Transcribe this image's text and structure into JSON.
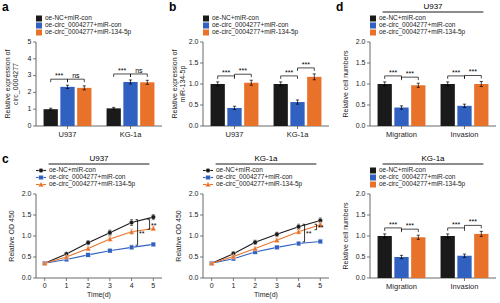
{
  "chart_data": [
    {
      "type": "bar",
      "panel_label": "a",
      "y_label": "Relative expression of\ncirc_0004277",
      "categories": [
        "U937",
        "KG-1a"
      ],
      "series": [
        {
          "name": "oe-NC+miR-con",
          "color": "#1a1a1a",
          "values": [
            1.0,
            1.05
          ],
          "errors": [
            0.06,
            0.06
          ]
        },
        {
          "name": "oe-circ_0004277+miR-con",
          "color": "#3060c0",
          "values": [
            2.33,
            2.62
          ],
          "errors": [
            0.1,
            0.12
          ]
        },
        {
          "name": "oe-circ_0004277+miR-134-5p",
          "color": "#e8722a",
          "values": [
            2.27,
            2.6
          ],
          "errors": [
            0.12,
            0.12
          ]
        }
      ],
      "ylim": [
        0,
        5
      ],
      "yticks": [
        0,
        1,
        2,
        3,
        4,
        5
      ],
      "annotations": [
        [
          "***",
          "ns"
        ],
        [
          "***",
          "ns"
        ]
      ],
      "legend": "top"
    },
    {
      "type": "bar",
      "panel_label": "b",
      "y_label": "Relative expression of\nmiR-134-5p",
      "categories": [
        "U937",
        "KG-1a"
      ],
      "series": [
        {
          "name": "oe-NC+miR-con",
          "color": "#1a1a1a",
          "values": [
            1.0,
            1.0
          ],
          "errors": [
            0.05,
            0.05
          ]
        },
        {
          "name": "oe-circ_0004277+miR-con",
          "color": "#3060c0",
          "values": [
            0.43,
            0.57
          ],
          "errors": [
            0.04,
            0.05
          ]
        },
        {
          "name": "oe-circ_0004277+miR-134-5p",
          "color": "#e8722a",
          "values": [
            1.03,
            1.17
          ],
          "errors": [
            0.06,
            0.07
          ]
        }
      ],
      "ylim": [
        0,
        2.0
      ],
      "yticks": [
        {
          "value": 0,
          "label": "0.0"
        },
        0.5,
        {
          "value": 1,
          "label": "1.0"
        },
        1.5,
        {
          "value": 2,
          "label": "2.0"
        }
      ],
      "annotations": [
        [
          "***",
          "***"
        ],
        [
          "***",
          "***"
        ]
      ],
      "legend": "top"
    },
    {
      "type": "bar",
      "panel_label": "d",
      "title": "U937",
      "y_label": "Relative cell numbers",
      "categories": [
        "Migration",
        "Invasion"
      ],
      "series": [
        {
          "name": "oe-NC+miR-con",
          "color": "#1a1a1a",
          "values": [
            1.0,
            1.0
          ],
          "errors": [
            0.05,
            0.05
          ]
        },
        {
          "name": "oe-circ_0004277+miR-con",
          "color": "#3060c0",
          "values": [
            0.44,
            0.48
          ],
          "errors": [
            0.04,
            0.04
          ]
        },
        {
          "name": "oe-circ_0004277+miR-134-5p",
          "color": "#e8722a",
          "values": [
            0.97,
            1.0
          ],
          "errors": [
            0.05,
            0.06
          ]
        }
      ],
      "ylim": [
        0,
        2.0
      ],
      "yticks": [
        {
          "value": 0,
          "label": "0.0"
        },
        0.5,
        {
          "value": 1,
          "label": "1.0"
        },
        1.5,
        {
          "value": 2,
          "label": "2.0"
        }
      ],
      "annotations": [
        [
          "***",
          "***"
        ],
        [
          "***",
          "***"
        ]
      ],
      "legend": "top"
    },
    {
      "type": "line",
      "panel_label": "c",
      "title": "U937",
      "x_label": "Time(d)",
      "y_label": "Relative OD 450",
      "x": [
        0,
        1,
        2,
        3,
        4,
        5
      ],
      "series": [
        {
          "name": "oe-NC+miR-con",
          "color": "#1a1a1a",
          "marker": "circle",
          "values": [
            0.35,
            0.57,
            0.84,
            1.08,
            1.32,
            1.45
          ],
          "errors": [
            0.02,
            0.04,
            0.05,
            0.06,
            0.07,
            0.06
          ]
        },
        {
          "name": "oe-circ_0004277+miR-con",
          "color": "#3060c0",
          "marker": "square",
          "values": [
            0.35,
            0.44,
            0.55,
            0.65,
            0.73,
            0.8
          ],
          "errors": [
            0.02,
            0.02,
            0.03,
            0.04,
            0.05,
            0.04
          ]
        },
        {
          "name": "oe-circ_0004277+miR-134-5p",
          "color": "#e8722a",
          "marker": "triangle",
          "values": [
            0.35,
            0.5,
            0.7,
            0.93,
            1.1,
            1.18
          ],
          "errors": [
            0.02,
            0.03,
            0.04,
            0.05,
            0.06,
            0.05
          ]
        }
      ],
      "xlim": [
        -0.4,
        5.4
      ],
      "xticks": [
        0,
        1,
        2,
        3,
        4,
        5
      ],
      "ylim": [
        0,
        2.0
      ],
      "yticks": [
        {
          "value": 0,
          "label": "0.0"
        },
        0.5,
        {
          "value": 1,
          "label": "1.0"
        },
        1.5,
        {
          "value": 2,
          "label": "2.0"
        }
      ],
      "annotations": [
        {
          "x": 4,
          "text": "**"
        },
        {
          "x": 4,
          "text": "**"
        }
      ],
      "legend": "top"
    },
    {
      "type": "line",
      "title": "KG-1a",
      "x_label": "Time(d)",
      "y_label": "Relative OD 450",
      "x": [
        0,
        1,
        2,
        3,
        4,
        5
      ],
      "series": [
        {
          "name": "oe-NC+miR-con",
          "color": "#1a1a1a",
          "marker": "circle",
          "values": [
            0.35,
            0.58,
            0.85,
            1.04,
            1.22,
            1.37
          ],
          "errors": [
            0.02,
            0.04,
            0.05,
            0.05,
            0.06,
            0.06
          ]
        },
        {
          "name": "oe-circ_0004277+miR-con",
          "color": "#3060c0",
          "marker": "square",
          "values": [
            0.35,
            0.46,
            0.62,
            0.73,
            0.82,
            0.87
          ],
          "errors": [
            0.02,
            0.02,
            0.03,
            0.04,
            0.04,
            0.05
          ]
        },
        {
          "name": "oe-circ_0004277+miR-134-5p",
          "color": "#e8722a",
          "marker": "triangle",
          "values": [
            0.35,
            0.51,
            0.7,
            0.9,
            1.1,
            1.27
          ],
          "errors": [
            0.02,
            0.03,
            0.04,
            0.05,
            0.05,
            0.06
          ]
        }
      ],
      "xlim": [
        -0.4,
        5.4
      ],
      "xticks": [
        0,
        1,
        2,
        3,
        4,
        5
      ],
      "ylim": [
        0,
        2.0
      ],
      "yticks": [
        {
          "value": 0,
          "label": "0.0"
        },
        0.5,
        {
          "value": 1,
          "label": "1.0"
        },
        1.5,
        {
          "value": 2,
          "label": "2.0"
        }
      ],
      "annotations": [
        {
          "x": 4,
          "text": "**"
        },
        {
          "x": 4,
          "text": "**"
        }
      ],
      "legend": "top"
    },
    {
      "type": "bar",
      "title": "KG-1a",
      "y_label": "Relative cell numbers",
      "categories": [
        "Migration",
        "Invasion"
      ],
      "series": [
        {
          "name": "oe-NC+miR-con",
          "color": "#1a1a1a",
          "values": [
            1.0,
            1.0
          ],
          "errors": [
            0.05,
            0.05
          ]
        },
        {
          "name": "oe-circ_0004277+miR-con",
          "color": "#3060c0",
          "values": [
            0.5,
            0.53
          ],
          "errors": [
            0.04,
            0.04
          ]
        },
        {
          "name": "oe-circ_0004277+miR-134-5p",
          "color": "#e8722a",
          "values": [
            0.97,
            1.05
          ],
          "errors": [
            0.05,
            0.06
          ]
        }
      ],
      "ylim": [
        0,
        2.0
      ],
      "yticks": [
        {
          "value": 0,
          "label": "0.0"
        },
        0.5,
        {
          "value": 1,
          "label": "1.0"
        },
        1.5,
        {
          "value": 2,
          "label": "2.0"
        }
      ],
      "annotations": [
        [
          "***",
          "***"
        ],
        [
          "***",
          "***"
        ]
      ],
      "legend": "top"
    }
  ]
}
